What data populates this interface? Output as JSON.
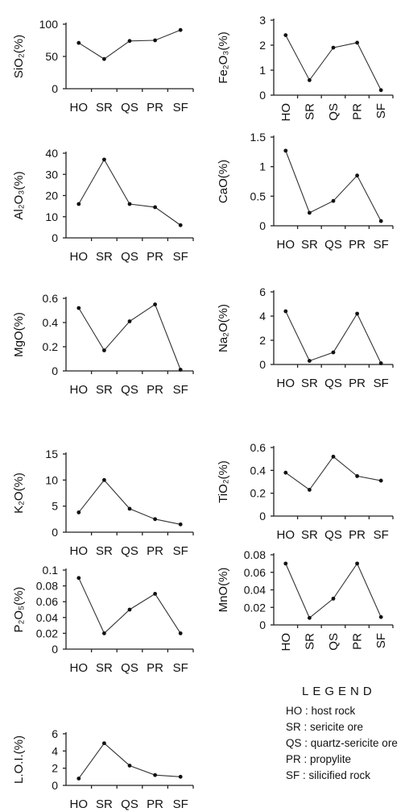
{
  "chart_data": [
    {
      "type": "line",
      "ylabel": "SiO₂(%)",
      "categories": [
        "HO",
        "SR",
        "QS",
        "PR",
        "SF"
      ],
      "values": [
        71,
        46,
        74,
        75,
        91
      ],
      "ylim": [
        0,
        100
      ],
      "yticks": [
        "0",
        "50",
        "100"
      ],
      "vertical_categories": false
    },
    {
      "type": "line",
      "ylabel": "Fe₂O₃(%)",
      "categories": [
        "HO",
        "SR",
        "QS",
        "PR",
        "SF"
      ],
      "values": [
        2.4,
        0.6,
        1.9,
        2.1,
        0.2
      ],
      "ylim": [
        0,
        3
      ],
      "yticks": [
        "0",
        "1",
        "2",
        "3"
      ],
      "vertical_categories": true
    },
    {
      "type": "line",
      "ylabel": "Al₂O₃(%)",
      "categories": [
        "HO",
        "SR",
        "QS",
        "PR",
        "SF"
      ],
      "values": [
        16,
        37,
        16,
        14.5,
        6
      ],
      "ylim": [
        0,
        40
      ],
      "yticks": [
        "0",
        "10",
        "20",
        "30",
        "40"
      ],
      "vertical_categories": false
    },
    {
      "type": "line",
      "ylabel": "CaO(%)",
      "categories": [
        "HO",
        "SR",
        "QS",
        "PR",
        "SF"
      ],
      "values": [
        1.27,
        0.22,
        0.42,
        0.85,
        0.08
      ],
      "ylim": [
        0,
        1.5
      ],
      "yticks": [
        "0",
        "0.5",
        "1",
        "1.5"
      ],
      "vertical_categories": false
    },
    {
      "type": "line",
      "ylabel": "MgO(%)",
      "categories": [
        "HO",
        "SR",
        "QS",
        "PR",
        "SF"
      ],
      "values": [
        0.52,
        0.17,
        0.41,
        0.55,
        0.01
      ],
      "ylim": [
        0,
        0.6
      ],
      "yticks": [
        "0",
        "0.2",
        "0.4",
        "0.6"
      ],
      "vertical_categories": false
    },
    {
      "type": "line",
      "ylabel": "Na₂O(%)",
      "categories": [
        "HO",
        "SR",
        "QS",
        "PR",
        "SF"
      ],
      "values": [
        4.4,
        0.3,
        1,
        4.2,
        0.1
      ],
      "ylim": [
        0,
        6
      ],
      "yticks": [
        "0",
        "2",
        "4",
        "6"
      ],
      "vertical_categories": false
    },
    {
      "type": "line",
      "ylabel": "K₂O(%)",
      "categories": [
        "HO",
        "SR",
        "QS",
        "PR",
        "SF"
      ],
      "values": [
        3.8,
        10,
        4.5,
        2.5,
        1.5
      ],
      "ylim": [
        0,
        15
      ],
      "yticks": [
        "0",
        "5",
        "10",
        "15"
      ],
      "vertical_categories": false
    },
    {
      "type": "line",
      "ylabel": "TiO₂(%)",
      "categories": [
        "HO",
        "SR",
        "QS",
        "PR",
        "SF"
      ],
      "values": [
        0.38,
        0.23,
        0.52,
        0.35,
        0.31
      ],
      "ylim": [
        0,
        0.6
      ],
      "yticks": [
        "0",
        "0.2",
        "0.4",
        "0.6"
      ],
      "vertical_categories": false
    },
    {
      "type": "line",
      "ylabel": "P₂O₅(%)",
      "categories": [
        "HO",
        "SR",
        "QS",
        "PR",
        "SF"
      ],
      "values": [
        0.09,
        0.02,
        0.05,
        0.07,
        0.02
      ],
      "ylim": [
        0,
        0.1
      ],
      "yticks": [
        "0",
        "0.02",
        "0.04",
        "0.06",
        "0.08",
        "0.1"
      ],
      "vertical_categories": false
    },
    {
      "type": "line",
      "ylabel": "MnO(%)",
      "categories": [
        "HO",
        "SR",
        "QS",
        "PR",
        "SF"
      ],
      "values": [
        0.07,
        0.008,
        0.03,
        0.07,
        0.009
      ],
      "ylim": [
        0,
        0.08
      ],
      "yticks": [
        "0",
        "0.02",
        "0.04",
        "0.06",
        "0.08"
      ],
      "vertical_categories": true
    },
    {
      "type": "line",
      "ylabel": "L.O.I.(%)",
      "categories": [
        "HO",
        "SR",
        "QS",
        "PR",
        "SF"
      ],
      "values": [
        0.8,
        4.9,
        2.3,
        1.2,
        1
      ],
      "ylim": [
        0,
        6
      ],
      "yticks": [
        "0",
        "2",
        "4",
        "6"
      ],
      "vertical_categories": false
    }
  ],
  "legend": {
    "title": "LEGEND",
    "items": [
      {
        "code": "HO",
        "desc": "host rock"
      },
      {
        "code": "SR",
        "desc": "sericite ore"
      },
      {
        "code": "QS",
        "desc": "quartz-sericite ore"
      },
      {
        "code": "PR",
        "desc": "propylite"
      },
      {
        "code": "SF",
        "desc": "silicified rock"
      }
    ]
  }
}
